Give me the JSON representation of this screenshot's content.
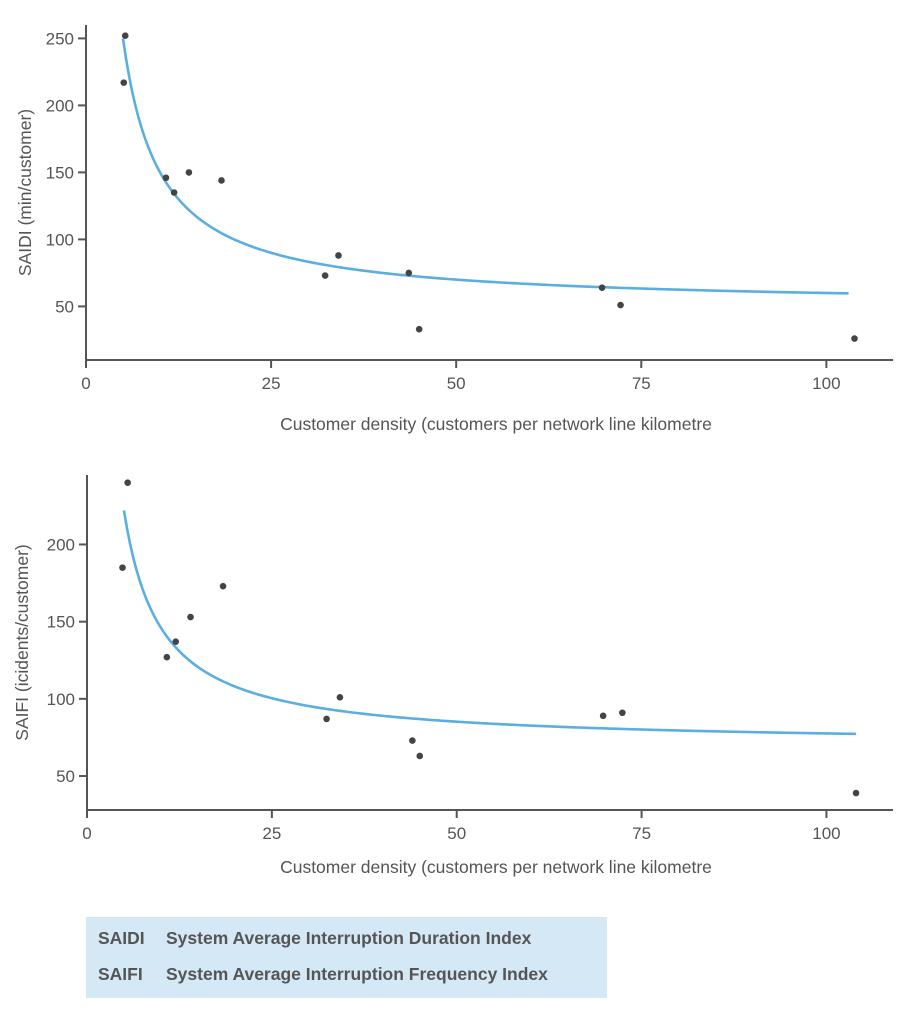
{
  "chart_data": [
    {
      "type": "scatter",
      "xlabel": "Customer density (customers per network line kilometre",
      "ylabel": "SAIDI (min/customer)",
      "xlim": [
        0,
        109
      ],
      "ylim": [
        10,
        260
      ],
      "xticks": [
        0,
        25,
        50,
        75,
        100
      ],
      "yticks": [
        50,
        100,
        150,
        200,
        250
      ],
      "grid": false,
      "points": [
        {
          "x": 5.1,
          "y": 217
        },
        {
          "x": 5.3,
          "y": 252
        },
        {
          "x": 10.8,
          "y": 146
        },
        {
          "x": 11.9,
          "y": 135
        },
        {
          "x": 13.9,
          "y": 150
        },
        {
          "x": 18.3,
          "y": 144
        },
        {
          "x": 32.3,
          "y": 73
        },
        {
          "x": 34.1,
          "y": 88
        },
        {
          "x": 43.6,
          "y": 75
        },
        {
          "x": 45.0,
          "y": 33
        },
        {
          "x": 69.7,
          "y": 64
        },
        {
          "x": 72.2,
          "y": 51
        },
        {
          "x": 103.8,
          "y": 26
        }
      ],
      "fit": {
        "form": "a + b/x",
        "a": 50,
        "b": 1000,
        "x_range": [
          5,
          103
        ]
      }
    },
    {
      "type": "scatter",
      "xlabel": "Customer density (customers per network line kilometre",
      "ylabel": "SAIFI (icidents/customer)",
      "xlim": [
        0,
        109
      ],
      "ylim": [
        28,
        245
      ],
      "xticks": [
        0,
        25,
        50,
        75,
        100
      ],
      "yticks": [
        50,
        100,
        150,
        200
      ],
      "grid": false,
      "points": [
        {
          "x": 4.8,
          "y": 185
        },
        {
          "x": 5.5,
          "y": 240
        },
        {
          "x": 10.8,
          "y": 127
        },
        {
          "x": 12.0,
          "y": 137
        },
        {
          "x": 14.0,
          "y": 153
        },
        {
          "x": 18.4,
          "y": 173
        },
        {
          "x": 32.4,
          "y": 87
        },
        {
          "x": 34.2,
          "y": 101
        },
        {
          "x": 44.0,
          "y": 73
        },
        {
          "x": 45.0,
          "y": 63
        },
        {
          "x": 69.8,
          "y": 89
        },
        {
          "x": 72.4,
          "y": 91
        },
        {
          "x": 104.0,
          "y": 39
        }
      ],
      "fit": {
        "form": "a + b/x",
        "a": 70,
        "b": 760,
        "x_range": [
          5,
          104
        ]
      }
    }
  ],
  "legend": [
    {
      "abbr": "SAIDI",
      "text": "System Average Interruption Duration Index"
    },
    {
      "abbr": "SAIFI",
      "text": "System Average Interruption Frequency Index"
    }
  ]
}
